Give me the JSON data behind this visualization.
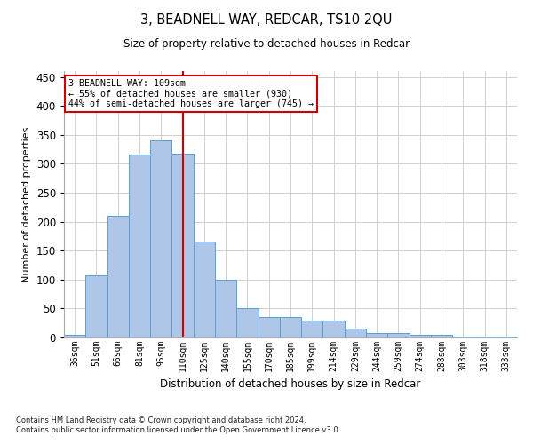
{
  "title": "3, BEADNELL WAY, REDCAR, TS10 2QU",
  "subtitle": "Size of property relative to detached houses in Redcar",
  "xlabel": "Distribution of detached houses by size in Redcar",
  "ylabel": "Number of detached properties",
  "footnote1": "Contains HM Land Registry data © Crown copyright and database right 2024.",
  "footnote2": "Contains public sector information licensed under the Open Government Licence v3.0.",
  "bar_labels": [
    "36sqm",
    "51sqm",
    "66sqm",
    "81sqm",
    "95sqm",
    "110sqm",
    "125sqm",
    "140sqm",
    "155sqm",
    "170sqm",
    "185sqm",
    "199sqm",
    "214sqm",
    "229sqm",
    "244sqm",
    "259sqm",
    "274sqm",
    "288sqm",
    "303sqm",
    "318sqm",
    "333sqm"
  ],
  "bar_values": [
    5,
    107,
    210,
    316,
    341,
    318,
    165,
    99,
    50,
    35,
    35,
    29,
    29,
    15,
    8,
    8,
    5,
    5,
    2,
    1,
    1
  ],
  "bar_color": "#aec6e8",
  "bar_edge_color": "#5a9fd4",
  "vline_x_index": 5,
  "vline_color": "#cc0000",
  "ylim": [
    0,
    460
  ],
  "yticks": [
    0,
    50,
    100,
    150,
    200,
    250,
    300,
    350,
    400,
    450
  ],
  "annotation_title": "3 BEADNELL WAY: 109sqm",
  "annotation_line1": "← 55% of detached houses are smaller (930)",
  "annotation_line2": "44% of semi-detached houses are larger (745) →",
  "annotation_box_color": "#ffffff",
  "annotation_box_edge": "#cc0000",
  "background_color": "#ffffff",
  "grid_color": "#d0d0d0"
}
